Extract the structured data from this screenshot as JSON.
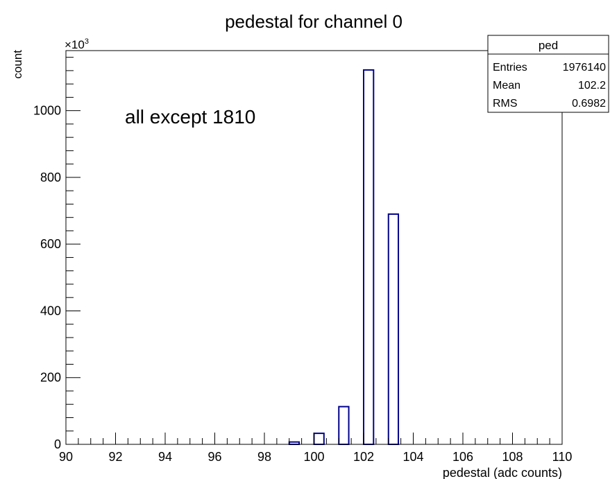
{
  "chart_data": {
    "type": "bar",
    "title": "pedestal for channel 0",
    "xlabel": "pedestal (adc counts)",
    "ylabel": "count",
    "y_multiplier_label": "×10",
    "y_multiplier_exponent": "3",
    "annotation": "all except 1810",
    "xlim": [
      90,
      110
    ],
    "ylim": [
      0,
      1180
    ],
    "x_ticks": [
      "90",
      "92",
      "94",
      "96",
      "98",
      "100",
      "102",
      "104",
      "106",
      "108",
      "110"
    ],
    "y_ticks": [
      "0",
      "200",
      "400",
      "600",
      "800",
      "1000"
    ],
    "bin_width": 0.4,
    "bins": [
      {
        "x": 99.2,
        "value": 7
      },
      {
        "x": 100.2,
        "value": 33
      },
      {
        "x": 101.2,
        "value": 113
      },
      {
        "x": 102.2,
        "value": 1122
      },
      {
        "x": 103.2,
        "value": 690
      }
    ],
    "colors": {
      "bar": "#00008b",
      "axis": "#000000",
      "background": "#ffffff"
    },
    "grid": false,
    "stats_box": {
      "title": "ped",
      "rows": [
        {
          "label": "Entries",
          "value": "1976140"
        },
        {
          "label": "Mean",
          "value": "102.2"
        },
        {
          "label": "RMS",
          "value": "0.6982"
        }
      ]
    }
  }
}
